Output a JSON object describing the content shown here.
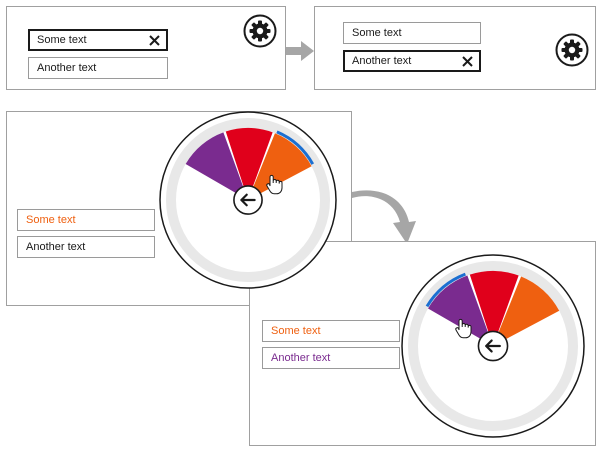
{
  "colors": {
    "purple": "#7a2b8f",
    "red": "#e0001b",
    "orange": "#ef6010",
    "accent_blue": "#1b6fd1",
    "text_dark": "#1a1a1a",
    "ring_gray": "#e8e8e8",
    "arrow_gray": "#a6a6a6"
  },
  "icons": {
    "settings": "gear-icon",
    "clear": "close-x-icon",
    "back": "back-arrow-icon",
    "pointer": "hand-pointer-icon",
    "flow": "flow-arrow-icon"
  },
  "step1": {
    "field1": {
      "text": "Some text",
      "focused": true,
      "show_clear": true
    },
    "field2": {
      "text": "Another text"
    }
  },
  "step2": {
    "field1": {
      "text": "Some text"
    },
    "field2": {
      "text": "Another text",
      "focused": true,
      "show_clear": true
    }
  },
  "step3": {
    "field1": {
      "text": "Some text",
      "color": "#ef6010"
    },
    "field2": {
      "text": "Another text",
      "color": "#1a1a1a"
    },
    "selected_swatch": "orange"
  },
  "step4": {
    "field1": {
      "text": "Some text",
      "color": "#ef6010"
    },
    "field2": {
      "text": "Another text",
      "color": "#7a2b8f"
    },
    "selected_swatch": "purple"
  }
}
